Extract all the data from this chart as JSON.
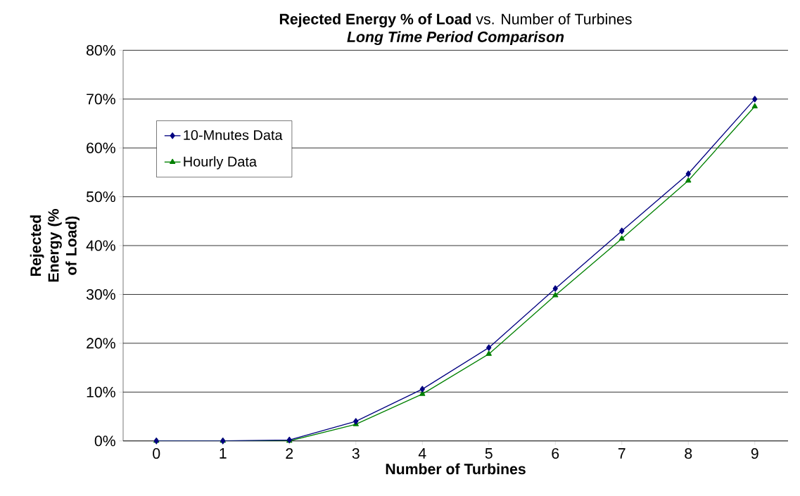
{
  "chart_data": {
    "type": "line",
    "title": "**Rejected Energy % of Load** vs. Number of Turbines",
    "subtitle": "Long Time Period Comparison",
    "xlabel": "Number of Turbines",
    "ylabel": "Rejected Energy (% of Load)",
    "categories": [
      "0",
      "1",
      "2",
      "3",
      "4",
      "5",
      "6",
      "7",
      "8",
      "9"
    ],
    "series": [
      {
        "name": "10-Mnutes Data",
        "color": "#000080",
        "marker": "diamond",
        "values": [
          0,
          0,
          0.2,
          4.0,
          10.6,
          19.1,
          31.2,
          43.0,
          54.7,
          70.0
        ]
      },
      {
        "name": "Hourly Data",
        "color": "#008000",
        "marker": "triangle",
        "values": [
          0,
          0,
          0,
          3.4,
          9.6,
          17.8,
          29.8,
          41.4,
          53.3,
          68.5
        ]
      }
    ],
    "ylim": [
      0,
      80
    ],
    "yticks": [
      {
        "value": 0,
        "label": "0%"
      },
      {
        "value": 10,
        "label": "10%"
      },
      {
        "value": 20,
        "label": "20%"
      },
      {
        "value": 30,
        "label": "30%"
      },
      {
        "value": 40,
        "label": "40%"
      },
      {
        "value": 50,
        "label": "50%"
      },
      {
        "value": 60,
        "label": "60%"
      },
      {
        "value": 70,
        "label": "70%"
      },
      {
        "value": 80,
        "label": "80%"
      }
    ],
    "grid": "y",
    "legend": "top left"
  }
}
